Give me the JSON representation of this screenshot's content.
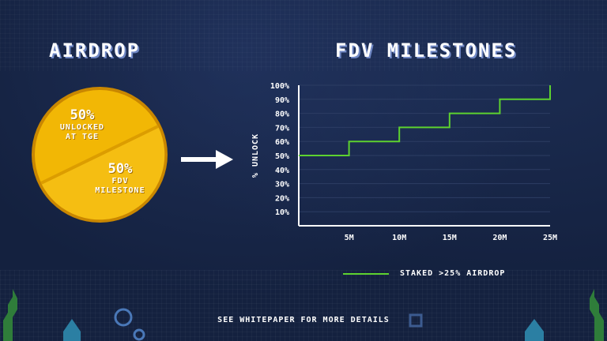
{
  "headings": {
    "airdrop": "AIRDROP",
    "fdv": "FDV MILESTONES"
  },
  "airdrop_pie": {
    "slice_a": {
      "pct": "50%",
      "text": "UNLOCKED\nAT TGE"
    },
    "slice_b": {
      "pct": "50%",
      "text": "FDV\nMILESTONE"
    }
  },
  "footer": "SEE WHITEPAPER FOR MORE DETAILS",
  "colors": {
    "background": "#14213f",
    "pie_gold": "#f2b705",
    "line_green": "#5dd22f",
    "heading_shadow": "#6f87c4"
  },
  "chart_data": [
    {
      "type": "pie",
      "categories": [
        "UNLOCKED AT TGE",
        "FDV MILESTONE"
      ],
      "values": [
        50,
        50
      ]
    },
    {
      "type": "line",
      "step": true,
      "ylabel": "% UNLOCK",
      "xlabel": "",
      "x_ticks": [
        "5M",
        "10M",
        "15M",
        "20M",
        "25M"
      ],
      "y_ticks": [
        "10%",
        "20%",
        "30%",
        "40%",
        "50%",
        "60%",
        "70%",
        "80%",
        "90%",
        "100%"
      ],
      "xlim": [
        0,
        25
      ],
      "ylim": [
        0,
        100
      ],
      "grid": true,
      "legend": "bottom",
      "series": [
        {
          "name": "STAKED >25% AIRDROP",
          "color": "#5dd22f",
          "x": [
            0,
            5,
            10,
            15,
            20,
            25
          ],
          "y": [
            50,
            60,
            70,
            80,
            90,
            100
          ]
        }
      ]
    }
  ]
}
